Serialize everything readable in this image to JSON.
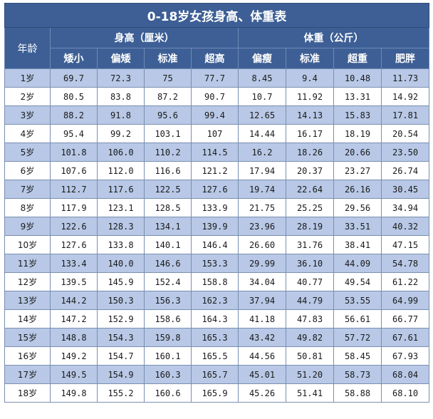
{
  "title": "0-18岁女孩身高、体重表",
  "header": {
    "age": "年龄",
    "height_group": "身高（厘米）",
    "weight_group": "体重（公斤）",
    "height_cols": [
      "矮小",
      "偏矮",
      "标准",
      "超高"
    ],
    "weight_cols": [
      "偏瘦",
      "标准",
      "超重",
      "肥胖"
    ]
  },
  "rows": [
    {
      "age": "1岁",
      "h": [
        "69.7",
        "72.3",
        "75",
        "77.7"
      ],
      "w": [
        "8.45",
        "9.4",
        "10.48",
        "11.73"
      ]
    },
    {
      "age": "2岁",
      "h": [
        "80.5",
        "83.8",
        "87.2",
        "90.7"
      ],
      "w": [
        "10.7",
        "11.92",
        "13.31",
        "14.92"
      ]
    },
    {
      "age": "3岁",
      "h": [
        "88.2",
        "91.8",
        "95.6",
        "99.4"
      ],
      "w": [
        "12.65",
        "14.13",
        "15.83",
        "17.81"
      ]
    },
    {
      "age": "4岁",
      "h": [
        "95.4",
        "99.2",
        "103.1",
        "107"
      ],
      "w": [
        "14.44",
        "16.17",
        "18.19",
        "20.54"
      ]
    },
    {
      "age": "5岁",
      "h": [
        "101.8",
        "106.0",
        "110.2",
        "114.5"
      ],
      "w": [
        "16.2",
        "18.26",
        "20.66",
        "23.50"
      ]
    },
    {
      "age": "6岁",
      "h": [
        "107.6",
        "112.0",
        "116.6",
        "121.2"
      ],
      "w": [
        "17.94",
        "20.37",
        "23.27",
        "26.74"
      ]
    },
    {
      "age": "7岁",
      "h": [
        "112.7",
        "117.6",
        "122.5",
        "127.6"
      ],
      "w": [
        "19.74",
        "22.64",
        "26.16",
        "30.45"
      ]
    },
    {
      "age": "8岁",
      "h": [
        "117.9",
        "123.1",
        "128.5",
        "133.9"
      ],
      "w": [
        "21.75",
        "25.25",
        "29.56",
        "34.94"
      ]
    },
    {
      "age": "9岁",
      "h": [
        "122.6",
        "128.3",
        "134.1",
        "139.9"
      ],
      "w": [
        "23.96",
        "28.19",
        "33.51",
        "40.32"
      ]
    },
    {
      "age": "10岁",
      "h": [
        "127.6",
        "133.8",
        "140.1",
        "146.4"
      ],
      "w": [
        "26.60",
        "31.76",
        "38.41",
        "47.15"
      ]
    },
    {
      "age": "11岁",
      "h": [
        "133.4",
        "140.0",
        "146.6",
        "153.3"
      ],
      "w": [
        "29.99",
        "36.10",
        "44.09",
        "54.78"
      ]
    },
    {
      "age": "12岁",
      "h": [
        "139.5",
        "145.9",
        "152.4",
        "158.8"
      ],
      "w": [
        "34.04",
        "40.77",
        "49.54",
        "61.22"
      ]
    },
    {
      "age": "13岁",
      "h": [
        "144.2",
        "150.3",
        "156.3",
        "162.3"
      ],
      "w": [
        "37.94",
        "44.79",
        "53.55",
        "64.99"
      ]
    },
    {
      "age": "14岁",
      "h": [
        "147.2",
        "152.9",
        "158.6",
        "164.3"
      ],
      "w": [
        "41.18",
        "47.83",
        "56.61",
        "66.77"
      ]
    },
    {
      "age": "15岁",
      "h": [
        "148.8",
        "154.3",
        "159.8",
        "165.3"
      ],
      "w": [
        "43.42",
        "49.82",
        "57.72",
        "67.61"
      ]
    },
    {
      "age": "16岁",
      "h": [
        "149.2",
        "154.7",
        "160.1",
        "165.5"
      ],
      "w": [
        "44.56",
        "50.81",
        "58.45",
        "67.93"
      ]
    },
    {
      "age": "17岁",
      "h": [
        "149.5",
        "154.9",
        "160.3",
        "165.7"
      ],
      "w": [
        "45.01",
        "51.20",
        "58.73",
        "68.04"
      ]
    },
    {
      "age": "18岁",
      "h": [
        "149.8",
        "155.2",
        "160.6",
        "165.9"
      ],
      "w": [
        "45.26",
        "51.41",
        "58.88",
        "68.10"
      ]
    }
  ]
}
